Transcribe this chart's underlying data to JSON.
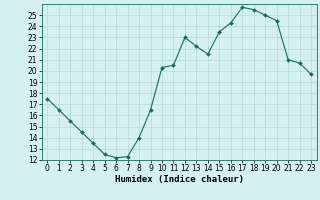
{
  "x": [
    0,
    1,
    2,
    3,
    4,
    5,
    6,
    7,
    8,
    9,
    10,
    11,
    12,
    13,
    14,
    15,
    16,
    17,
    18,
    19,
    20,
    21,
    22,
    23
  ],
  "y": [
    17.5,
    16.5,
    15.5,
    14.5,
    13.5,
    12.5,
    12.2,
    12.3,
    14.0,
    16.5,
    20.3,
    20.5,
    23.0,
    22.2,
    21.5,
    23.5,
    24.3,
    25.7,
    25.5,
    25.0,
    24.5,
    21.0,
    20.7,
    19.7
  ],
  "line_color": "#1a6b5a",
  "marker": "D",
  "marker_size": 2.0,
  "bg_color": "#d4f0f0",
  "grid_color": "#b8dada",
  "xlabel": "Humidex (Indice chaleur)",
  "ylim": [
    12,
    26
  ],
  "xlim": [
    -0.5,
    23.5
  ],
  "yticks": [
    12,
    13,
    14,
    15,
    16,
    17,
    18,
    19,
    20,
    21,
    22,
    23,
    24,
    25
  ],
  "xticks": [
    0,
    1,
    2,
    3,
    4,
    5,
    6,
    7,
    8,
    9,
    10,
    11,
    12,
    13,
    14,
    15,
    16,
    17,
    18,
    19,
    20,
    21,
    22,
    23
  ],
  "xlabel_fontsize": 6.5,
  "tick_fontsize": 5.5
}
